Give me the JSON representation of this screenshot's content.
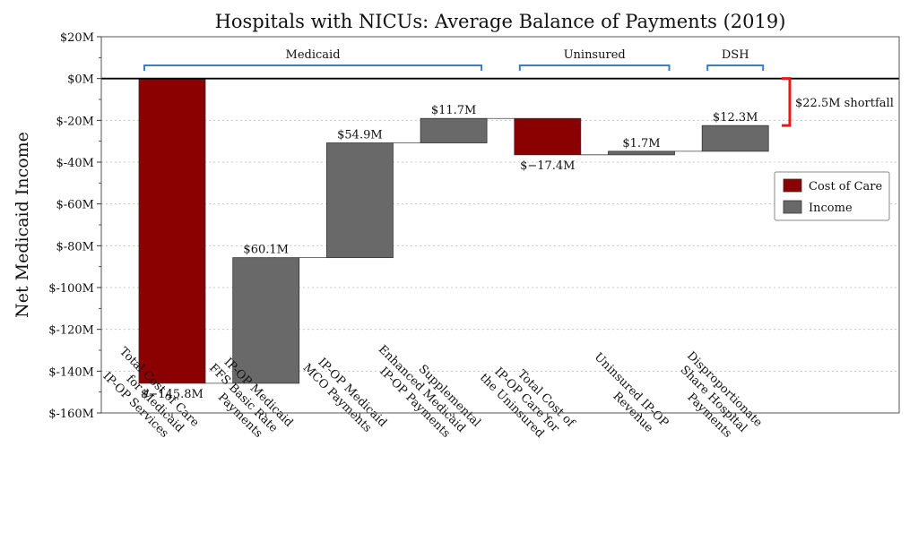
{
  "chart_data": {
    "type": "waterfall",
    "title": "Hospitals with NICUs: Average Balance of Payments (2019)",
    "ylabel": "Net Medicaid Income",
    "xlabel": "",
    "ylim": [
      -160,
      20
    ],
    "yticks": [
      20,
      0,
      -20,
      -40,
      -60,
      -80,
      -100,
      -120,
      -140,
      -160
    ],
    "ytick_labels": [
      "$20M",
      "$0M",
      "$-20M",
      "$-40M",
      "$-60M",
      "$-80M",
      "$-100M",
      "$-120M",
      "$-140M",
      "$-160M"
    ],
    "grid": "horizontal dotted",
    "categories": [
      [
        "Total Cost of Care",
        "for Medicaid",
        "IP-OP Services"
      ],
      [
        "IP-OP Medicaid",
        "FFS Basic Rate",
        "Payments"
      ],
      [
        "IP-OP Medicaid",
        "MCO Payments"
      ],
      [
        "Supplemental",
        "Enhanced Medicaid",
        "IP-OP Payments"
      ],
      [
        "Total Cost of",
        "IP-OP Care for",
        "the Uninsured"
      ],
      [
        "Uninsured IP-OP",
        "Revenue"
      ],
      [
        "Disproportionate",
        "Share Hospital",
        "Payments"
      ]
    ],
    "values": [
      -145.8,
      60.1,
      54.9,
      11.7,
      -17.4,
      1.7,
      12.3
    ],
    "value_labels": [
      "$−145.8M",
      "$60.1M",
      "$54.9M",
      "$11.7M",
      "$−17.4M",
      "$1.7M",
      "$12.3M"
    ],
    "kinds": [
      "cost",
      "income",
      "income",
      "income",
      "cost",
      "income",
      "income"
    ],
    "groups": [
      {
        "label": "Medicaid",
        "from": 0,
        "to": 3
      },
      {
        "label": "Uninsured",
        "from": 4,
        "to": 5
      },
      {
        "label": "DSH",
        "from": 6,
        "to": 6
      }
    ],
    "legend": {
      "position": "right",
      "entries": [
        {
          "label": "Cost of Care",
          "kind": "cost"
        },
        {
          "label": "Income",
          "kind": "income"
        }
      ]
    },
    "annotation": {
      "label": "$22.5M shortfall",
      "from": 0,
      "to": -22.5
    },
    "colors": {
      "cost": "#8b0000",
      "income": "#696969",
      "bracket": "#3a7ebf",
      "shortfall": "#e31a1c",
      "zero_line": "#000000",
      "grid": "#c8c8c8"
    }
  }
}
